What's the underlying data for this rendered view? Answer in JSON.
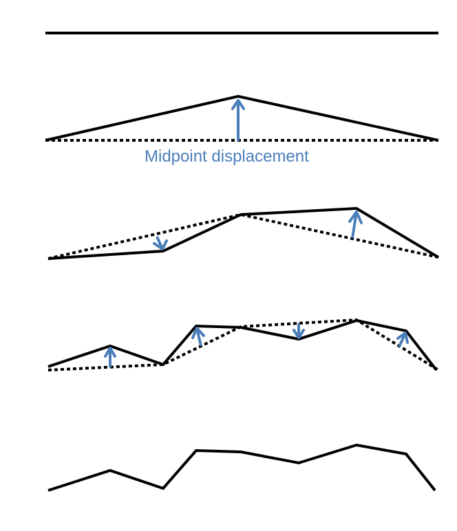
{
  "diagram": {
    "caption": "Midpoint displacement",
    "caption_color": "#4A7EBB",
    "line_color": "#000000",
    "arrow_color": "#4A7EBB"
  }
}
